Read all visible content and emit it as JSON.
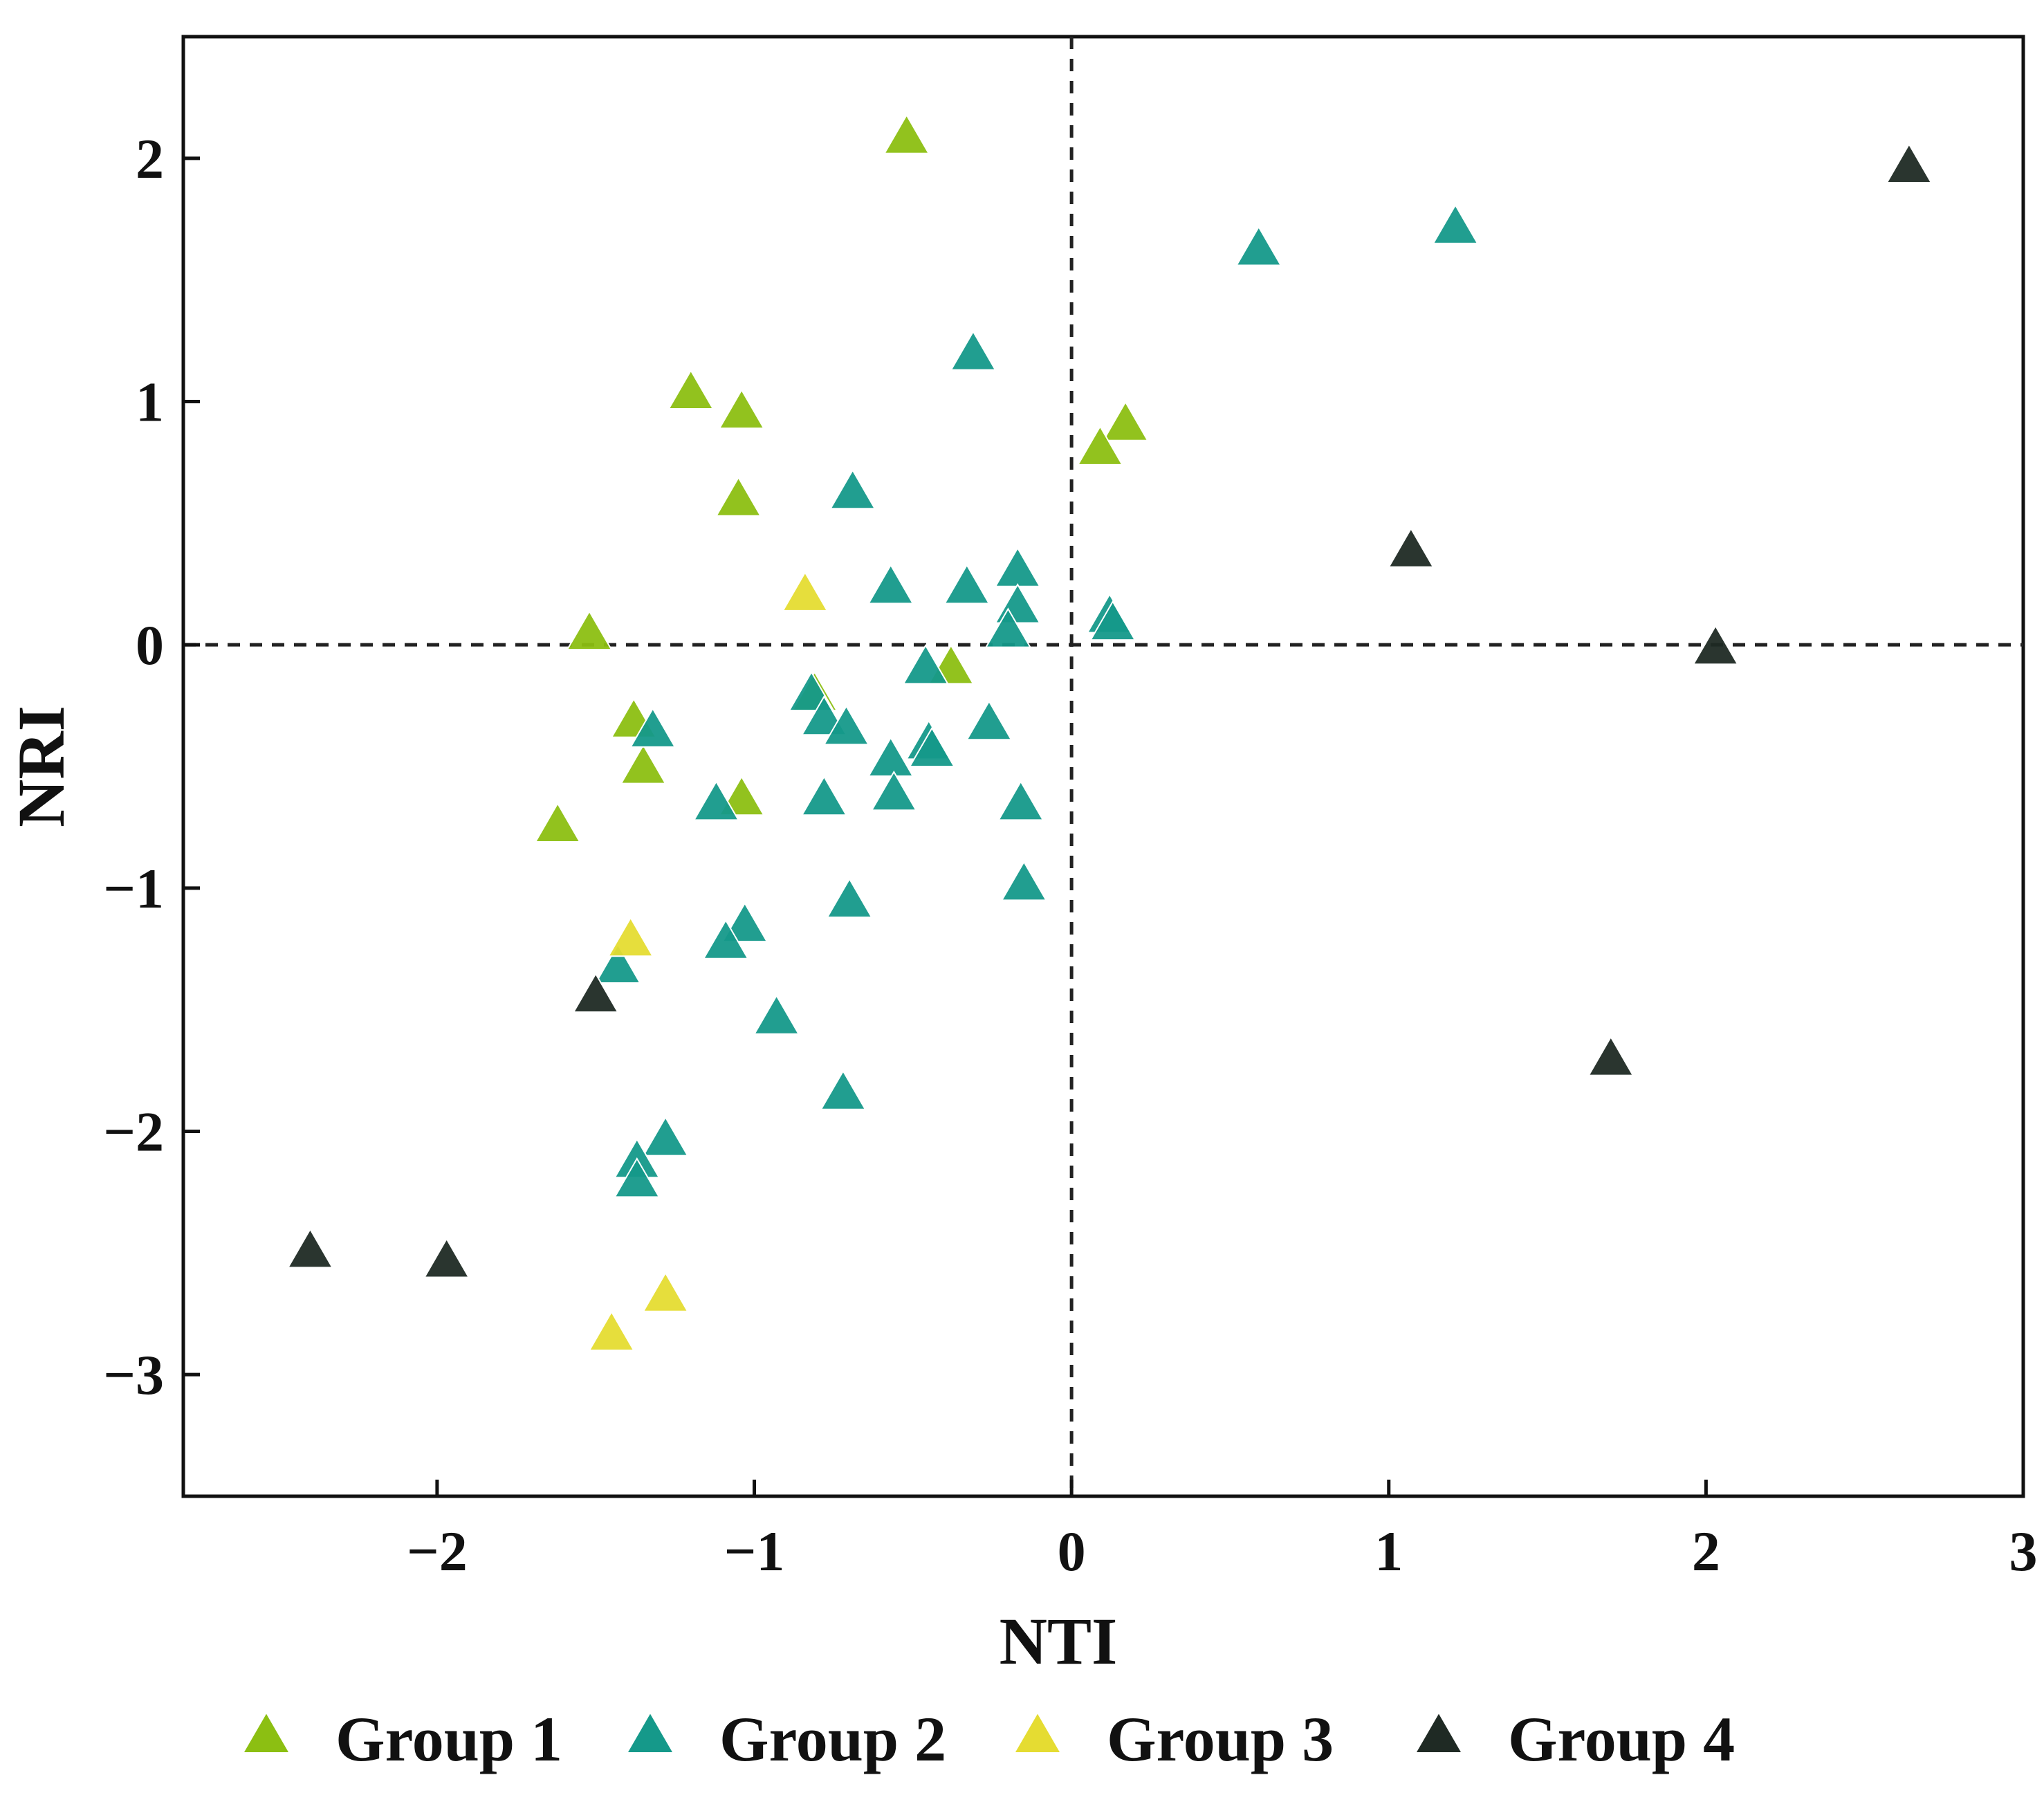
{
  "chart_data": {
    "type": "scatter",
    "xlabel": "NTI",
    "ylabel": "NRI",
    "xlim": [
      -2.8,
      3
    ],
    "ylim": [
      -3.5,
      2.5
    ],
    "xticks": [
      -2,
      -1,
      0,
      1,
      2,
      3
    ],
    "yticks": [
      2,
      1,
      0,
      -1,
      -2,
      -3
    ],
    "xtick_labels": [
      "−2",
      "−1",
      "0",
      "1",
      "2",
      "3"
    ],
    "ytick_labels": [
      "2",
      "1",
      "0",
      "−1",
      "−2",
      "−3"
    ],
    "reference_lines": {
      "x": 0,
      "y": 0,
      "style": "dashed"
    },
    "marker": "triangle",
    "legend_position": "bottom",
    "series": [
      {
        "name": "Group 1",
        "color": "#8cbf12",
        "points": [
          [
            -0.52,
            2.08
          ],
          [
            -1.2,
            1.03
          ],
          [
            -1.04,
            0.95
          ],
          [
            0.17,
            0.9
          ],
          [
            0.09,
            0.8
          ],
          [
            -1.05,
            0.59
          ],
          [
            -1.52,
            0.04
          ],
          [
            -0.38,
            -0.1
          ],
          [
            -0.81,
            -0.21
          ],
          [
            -1.38,
            -0.32
          ],
          [
            -1.35,
            -0.51
          ],
          [
            -1.04,
            -0.64
          ],
          [
            -1.62,
            -0.75
          ]
        ]
      },
      {
        "name": "Group 2",
        "color": "#15998a",
        "points": [
          [
            1.21,
            1.71
          ],
          [
            0.59,
            1.62
          ],
          [
            -0.31,
            1.19
          ],
          [
            -0.69,
            0.62
          ],
          [
            -0.57,
            0.23
          ],
          [
            -0.33,
            0.23
          ],
          [
            -0.17,
            0.3
          ],
          [
            -0.17,
            0.15
          ],
          [
            -0.2,
            0.05
          ],
          [
            0.12,
            0.11
          ],
          [
            0.13,
            0.08
          ],
          [
            -0.46,
            -0.1
          ],
          [
            -0.82,
            -0.21
          ],
          [
            -0.78,
            -0.31
          ],
          [
            -0.71,
            -0.35
          ],
          [
            -0.26,
            -0.33
          ],
          [
            -0.45,
            -0.41
          ],
          [
            -0.44,
            -0.44
          ],
          [
            -0.57,
            -0.48
          ],
          [
            -1.32,
            -0.36
          ],
          [
            -1.12,
            -0.66
          ],
          [
            -0.78,
            -0.64
          ],
          [
            -0.56,
            -0.62
          ],
          [
            -0.16,
            -0.66
          ],
          [
            -0.15,
            -0.99
          ],
          [
            -0.7,
            -1.06
          ],
          [
            -1.03,
            -1.16
          ],
          [
            -1.09,
            -1.23
          ],
          [
            -1.43,
            -1.33
          ],
          [
            -0.93,
            -1.54
          ],
          [
            -0.72,
            -1.85
          ],
          [
            -1.28,
            -2.04
          ],
          [
            -1.37,
            -2.13
          ],
          [
            -1.37,
            -2.21
          ]
        ]
      },
      {
        "name": "Group 3",
        "color": "#e5dc32",
        "points": [
          [
            -0.84,
            0.2
          ],
          [
            -1.39,
            -1.22
          ],
          [
            -1.28,
            -2.68
          ],
          [
            -1.45,
            -2.84
          ]
        ]
      },
      {
        "name": "Group 4",
        "color": "#1f2a24",
        "points": [
          [
            2.64,
            1.96
          ],
          [
            1.07,
            0.38
          ],
          [
            2.03,
            -0.02
          ],
          [
            1.7,
            -1.71
          ],
          [
            -1.5,
            -1.45
          ],
          [
            -2.4,
            -2.5
          ],
          [
            -1.97,
            -2.54
          ]
        ]
      }
    ]
  }
}
